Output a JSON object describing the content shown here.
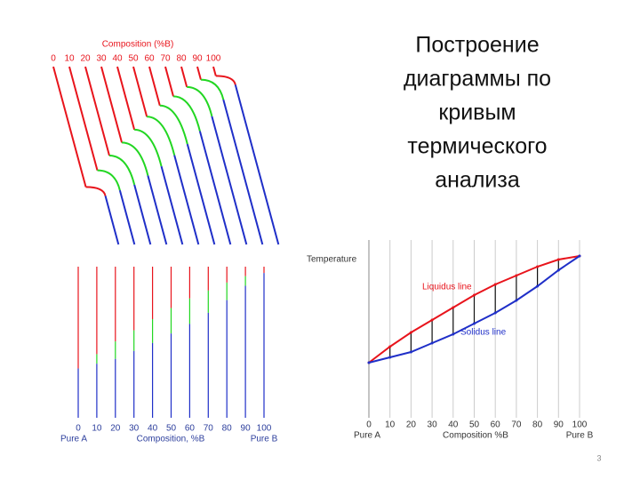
{
  "slide": {
    "title_lines": [
      "Построение",
      "диаграммы по",
      "кривым",
      "термического",
      "анализа"
    ],
    "page_number": "3"
  },
  "chart_data": [
    {
      "type": "cooling-curves",
      "title": "Composition (%B)",
      "categories": [
        "0",
        "10",
        "20",
        "30",
        "40",
        "50",
        "60",
        "70",
        "80",
        "90",
        "100"
      ],
      "liquidus": [
        31,
        40,
        48,
        55,
        62,
        69,
        75,
        80,
        85,
        89,
        91
      ],
      "solidus": [
        31,
        34,
        37,
        42,
        47,
        53,
        59,
        66,
        74,
        83,
        91
      ],
      "ylim": [
        0,
        96
      ],
      "colors": {
        "liquid": "#e8141c",
        "mushy": "#22d622",
        "solid": "#1f2fc8"
      }
    },
    {
      "type": "composition-lines",
      "xlabel": "Composition, %B",
      "left_label": "Pure A",
      "right_label": "Pure B",
      "categories": [
        "0",
        "10",
        "20",
        "30",
        "40",
        "50",
        "60",
        "70",
        "80",
        "90",
        "100"
      ],
      "liquidus": [
        31,
        40,
        48,
        55,
        62,
        69,
        75,
        80,
        85,
        89,
        91
      ],
      "solidus": [
        31,
        34,
        37,
        42,
        47,
        53,
        59,
        66,
        74,
        83,
        91
      ],
      "ylim": [
        0,
        95
      ],
      "colors": {
        "liquid": "#e8141c",
        "mushy": "#22d622",
        "solid": "#1f2fc8"
      }
    },
    {
      "type": "phase-diagram",
      "ylabel": "Temperature",
      "xlabel": "Composition %B",
      "left_label": "Pure A",
      "right_label": "Pure B",
      "x": [
        0,
        10,
        20,
        30,
        40,
        50,
        60,
        70,
        80,
        90,
        100
      ],
      "xlim": [
        0,
        100
      ],
      "xticks": [
        0,
        10,
        20,
        30,
        40,
        50,
        60,
        70,
        80,
        90,
        100
      ],
      "ylim": [
        0,
        100
      ],
      "grid": true,
      "series": [
        {
          "name": "Liquidus line",
          "color": "#e8141c",
          "values": [
            31,
            40,
            48,
            55,
            62,
            69,
            75,
            80,
            85,
            89,
            91
          ]
        },
        {
          "name": "Solidus line",
          "color": "#1f2fc8",
          "values": [
            31,
            34,
            37,
            42,
            47,
            53,
            59,
            66,
            74,
            83,
            91
          ]
        }
      ]
    }
  ]
}
